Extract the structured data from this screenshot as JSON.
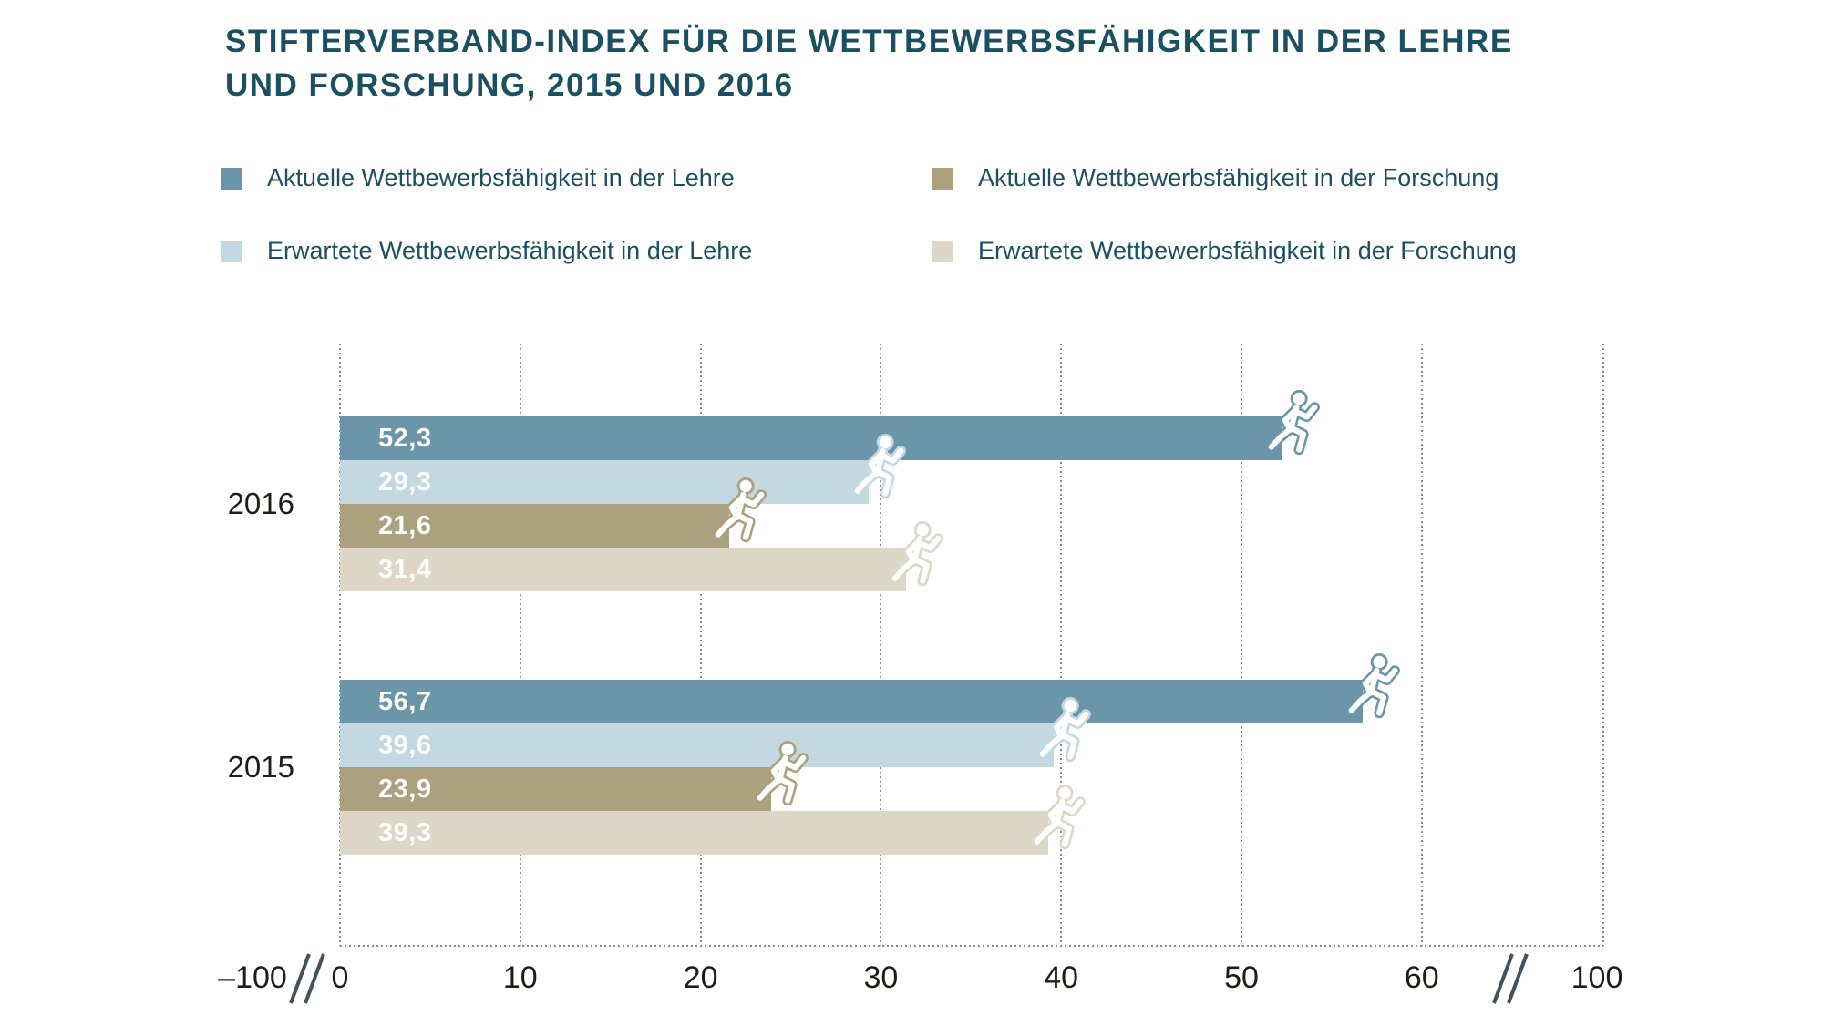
{
  "title": {
    "line1": "STIFTERVERBAND-INDEX FÜR DIE WETTBEWERBSFÄHIGKEIT IN DER LEHRE",
    "line2": "UND FORSCHUNG, 2015 UND 2016"
  },
  "legend": {
    "items": [
      {
        "id": "aktuell-lehre",
        "label": "Aktuelle Wettbewerbsfähigkeit in der Lehre",
        "color": "#6b96a9"
      },
      {
        "id": "aktuell-forschung",
        "label": "Aktuelle Wettbewerbsfähigkeit in der Forschung",
        "color": "#aba17f"
      },
      {
        "id": "erwartet-lehre",
        "label": "Erwartete Wettbewerbsfähigkeit in der Lehre",
        "color": "#c4d8e1"
      },
      {
        "id": "erwartet-forschung",
        "label": "Erwartete Wettbewerbsfähigkeit in der Forschung",
        "color": "#dcd7c7"
      }
    ]
  },
  "chart_data": {
    "type": "bar",
    "orientation": "horizontal",
    "title": "Stifterverband-Index für die Wettbewerbsfähigkeit in der Lehre und Forschung, 2015 und 2016",
    "categories": [
      "2016",
      "2015"
    ],
    "series": [
      {
        "id": "aktuell-lehre",
        "name": "Aktuelle Wettbewerbsfähigkeit in der Lehre",
        "color": "#6b96a9",
        "values": [
          52.3,
          56.7
        ],
        "labels": [
          "52,3",
          "56,7"
        ]
      },
      {
        "id": "erwartet-lehre",
        "name": "Erwartete Wettbewerbsfähigkeit in der Lehre",
        "color": "#c4d8e1",
        "values": [
          29.3,
          39.6
        ],
        "labels": [
          "29,3",
          "39,6"
        ]
      },
      {
        "id": "aktuell-forschung",
        "name": "Aktuelle Wettbewerbsfähigkeit in der Forschung",
        "color": "#aba17f",
        "values": [
          21.6,
          23.9
        ],
        "labels": [
          "21,6",
          "23,9"
        ]
      },
      {
        "id": "erwartet-forschung",
        "name": "Erwartete Wettbewerbsfähigkeit in der Forschung",
        "color": "#dcd7c7",
        "values": [
          31.4,
          39.3
        ],
        "labels": [
          "31,4",
          "39,3"
        ]
      }
    ],
    "x_axis": {
      "ticks": [
        "–100",
        "0",
        "10",
        "20",
        "30",
        "40",
        "50",
        "60",
        "100"
      ],
      "breaks_after": [
        "–100",
        "60"
      ],
      "range_shown": [
        0,
        60
      ],
      "grid": "dotted-vertical",
      "value_format": "decimal-comma"
    },
    "legend_position": "top"
  }
}
